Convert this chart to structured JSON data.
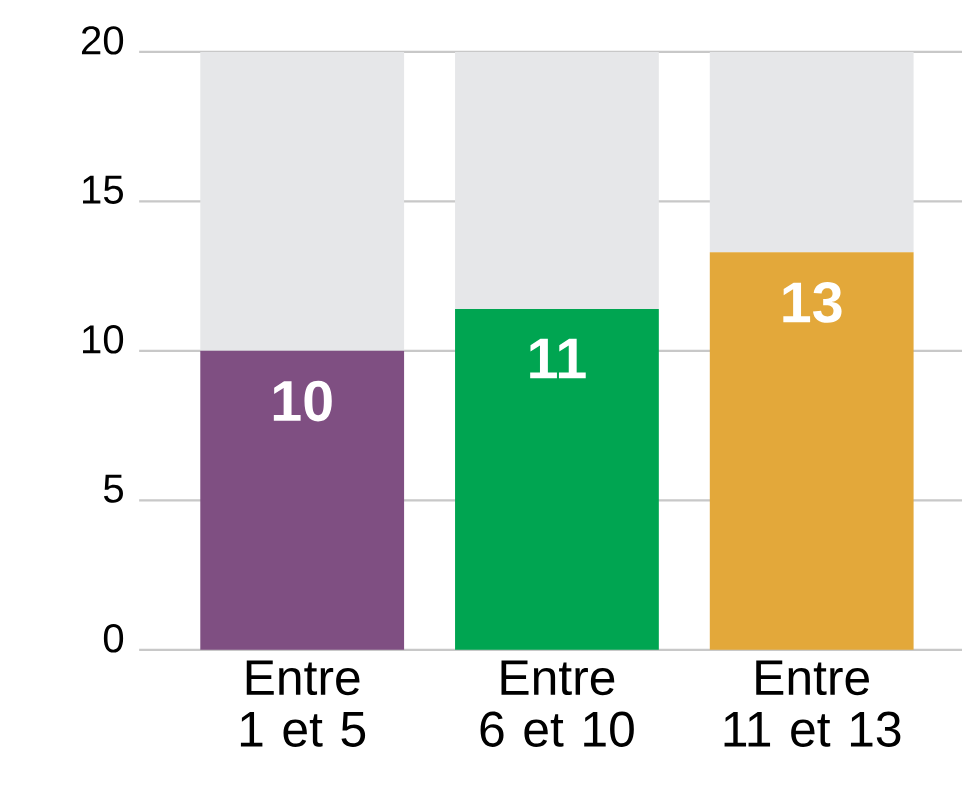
{
  "chart_data": {
    "type": "bar",
    "stacked": true,
    "categories": [
      "Entre 1 et 5",
      "Entre 6 et 10",
      "Entre 11 et 13"
    ],
    "series": [
      {
        "colors": [
          "#7f4f82",
          "#00a551",
          "#e3a83a"
        ],
        "values": [
          10,
          11.4,
          13.3
        ],
        "value_labels": [
          "10",
          "11",
          "13"
        ]
      },
      {
        "color": "#e6e7e9",
        "values": [
          10,
          8.6,
          6.7
        ]
      }
    ],
    "ylim": [
      0,
      20
    ],
    "yticks": [
      0,
      5,
      10,
      15,
      20
    ],
    "grid": "y"
  }
}
